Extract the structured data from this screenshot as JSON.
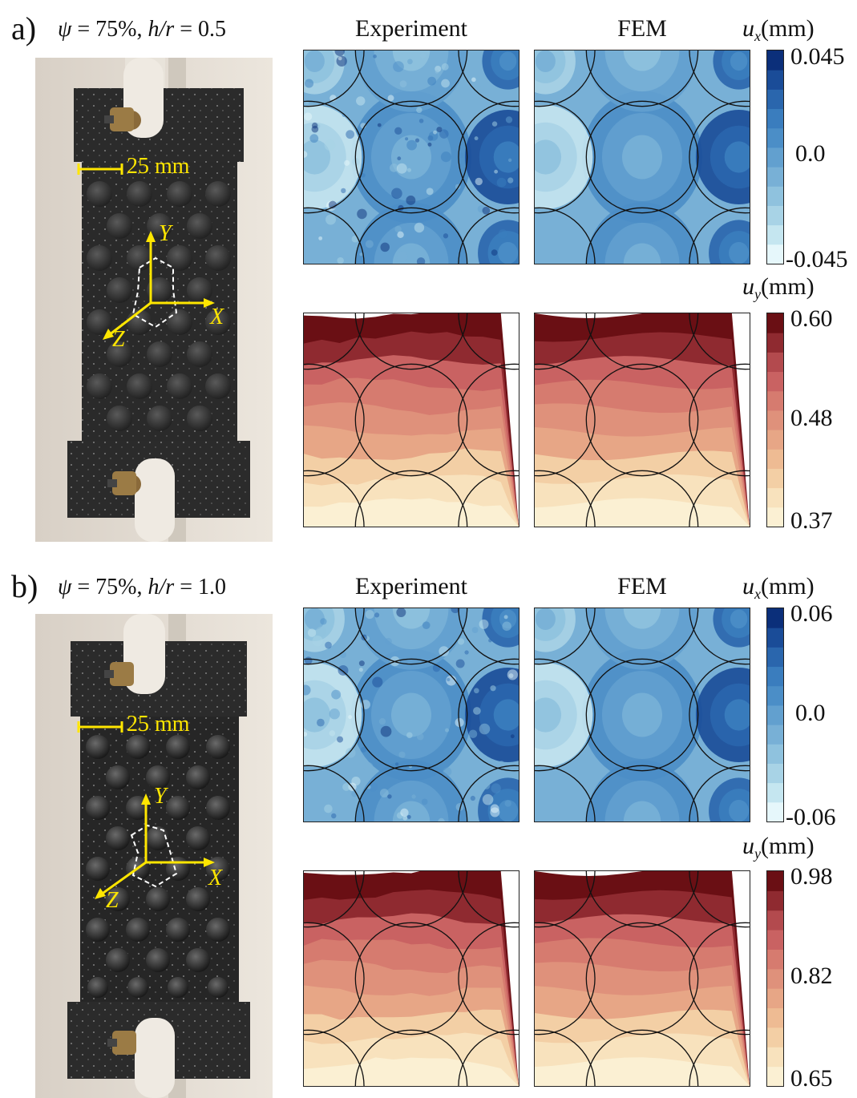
{
  "panels": [
    {
      "letter": "a)",
      "caption": {
        "psi": "ψ",
        "psi_value": " = 75%, ",
        "ratio": "h/r",
        "ratio_value": " = 0.5"
      },
      "photo": {
        "scale_label": "25 mm",
        "axis_x": "X",
        "axis_y": "Y",
        "axis_z": "Z"
      },
      "col_experiment": "Experiment",
      "col_fem": "FEM",
      "ux": {
        "symbol": "u",
        "subscript": "x",
        "unit": "(mm)",
        "ticks": [
          "0.045",
          "0.0",
          "-0.045"
        ]
      },
      "uy": {
        "symbol": "u",
        "subscript": "y",
        "unit": "(mm)",
        "ticks": [
          "0.60",
          "0.48",
          "0.37"
        ]
      }
    },
    {
      "letter": "b)",
      "caption": {
        "psi": "ψ",
        "psi_value": " = 75%, ",
        "ratio": "h/r",
        "ratio_value": " = 1.0"
      },
      "photo": {
        "scale_label": "25 mm",
        "axis_x": "X",
        "axis_y": "Y",
        "axis_z": "Z"
      },
      "col_experiment": "Experiment",
      "col_fem": "FEM",
      "ux": {
        "symbol": "u",
        "subscript": "x",
        "unit": "(mm)",
        "ticks": [
          "0.06",
          "0.0",
          "-0.06"
        ]
      },
      "uy": {
        "symbol": "u",
        "subscript": "y",
        "unit": "(mm)",
        "ticks": [
          "0.98",
          "0.82",
          "0.65"
        ]
      }
    }
  ],
  "colors": {
    "blue_scale": [
      "#e6f7fb",
      "#c5e6f0",
      "#a8d3e6",
      "#8fc2de",
      "#78b0d6",
      "#62a0cf",
      "#4b8ec7",
      "#3a7dbe",
      "#2a66ad",
      "#1a4c98",
      "#0b2f7a"
    ],
    "red_scale": [
      "#fbf0d3",
      "#f8e2bd",
      "#f3cfa5",
      "#eebb93",
      "#e7a686",
      "#df917b",
      "#d67b6f",
      "#c96262",
      "#b34a4e",
      "#8f2a30",
      "#6a0f14"
    ],
    "caption_yellow": "#ffe600"
  }
}
